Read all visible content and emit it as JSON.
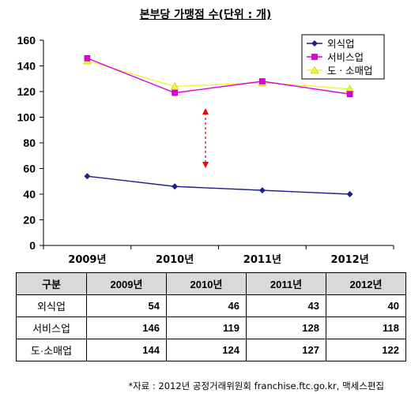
{
  "chart_data": {
    "type": "line",
    "title": "본부당 가맹점 수(단위 : 개)",
    "categories": [
      "2009년",
      "2010년",
      "2011년",
      "2012년"
    ],
    "ylim": [
      0,
      160
    ],
    "yticks": [
      "0",
      "20",
      "40",
      "60",
      "80",
      "100",
      "120",
      "140",
      "160"
    ],
    "grid": false,
    "legend_position": "top-right",
    "series": [
      {
        "name": "외식업",
        "values": [
          54,
          46,
          43,
          40
        ],
        "color": "#1f1f8f",
        "marker": "diamond"
      },
      {
        "name": "서비스업",
        "values": [
          146,
          119,
          128,
          118
        ],
        "color": "#e000e0",
        "marker": "square"
      },
      {
        "name": "도ㆍ소매업",
        "values": [
          144,
          124,
          127,
          122
        ],
        "color": "#f2f23a",
        "marker": "triangle"
      }
    ],
    "annotation_arrow_color": "#ff0000"
  },
  "table": {
    "corner": "구분",
    "headers": [
      "2009년",
      "2010년",
      "2011년",
      "2012년"
    ],
    "rows": [
      {
        "label": "외식업",
        "values": [
          "54",
          "46",
          "43",
          "40"
        ]
      },
      {
        "label": "서비스업",
        "values": [
          "146",
          "119",
          "128",
          "118"
        ]
      },
      {
        "label": "도·소매업",
        "values": [
          "144",
          "124",
          "127",
          "122"
        ]
      }
    ]
  },
  "source": "*자료 : 2012년 공정거래위원회 franchise.ftc.go.kr, 맥세스편집"
}
